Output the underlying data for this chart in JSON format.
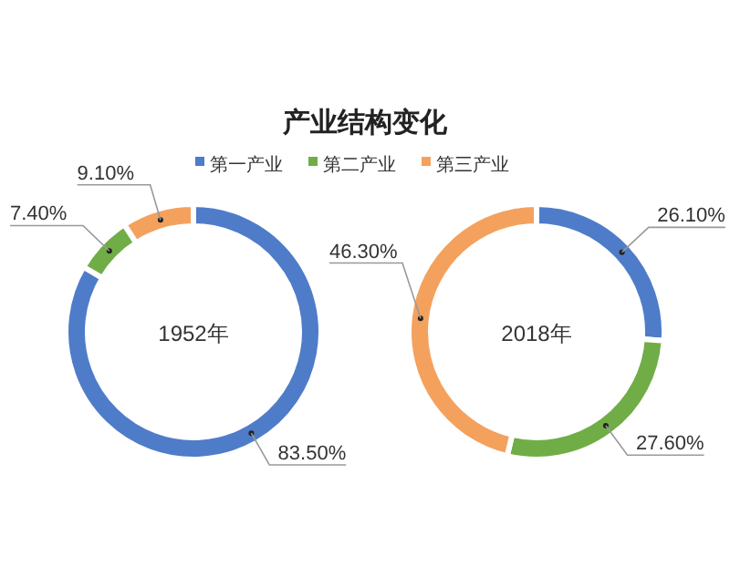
{
  "chart_data": [
    {
      "type": "donut",
      "title": "产业结构变化",
      "categories": [
        "第一产业",
        "第二产业",
        "第三产业"
      ],
      "values": [
        83.5,
        7.4,
        9.1
      ],
      "value_labels": [
        "83.50%",
        "7.40%",
        "9.10%"
      ],
      "colors": [
        "#4f7cc9",
        "#70ad47",
        "#f4a15e"
      ],
      "legend": "top",
      "annotations": [
        "1952年"
      ]
    },
    {
      "type": "donut",
      "categories": [
        null,
        null,
        null
      ],
      "values": [
        26.1,
        27.6,
        46.3
      ],
      "value_labels": [
        "26.10%",
        "27.60%",
        "46.30%"
      ],
      "colors": [
        "#4f7cc9",
        "#70ad47",
        "#f4a15e"
      ],
      "annotations": [
        "2018年"
      ]
    }
  ]
}
